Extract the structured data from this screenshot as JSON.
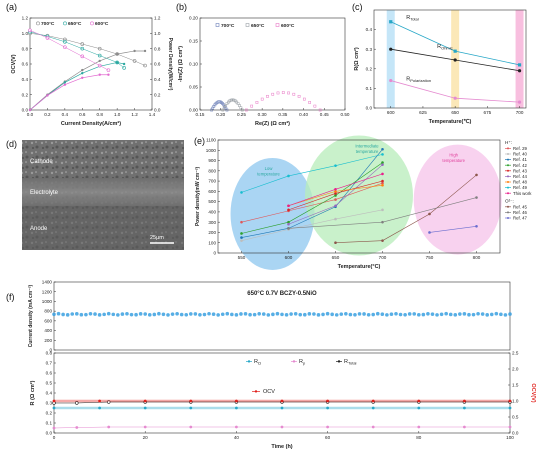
{
  "chart_data": [
    {
      "id": "a",
      "type": "line",
      "panel_label": "(a)",
      "xlabel": "Current Density(A/cm²)",
      "ylabel_left": "OCV(V)",
      "ylabel_right": "Power Density(W/cm²)",
      "xlim": [
        0.0,
        1.4
      ],
      "ylim_left": [
        0.0,
        1.2
      ],
      "ylim_right": [
        0.0,
        1.2
      ],
      "xticks": [
        "0.0",
        "0.2",
        "0.4",
        "0.6",
        "0.8",
        "1.0",
        "1.2",
        "1.4"
      ],
      "yticks_left": [
        "0.0",
        "0.2",
        "0.4",
        "0.6",
        "0.8",
        "1.0",
        "1.2"
      ],
      "yticks_right": [
        "0.0",
        "0.2",
        "0.4",
        "0.6",
        "0.8",
        "1.0",
        "1.2"
      ],
      "legend": [
        "700°C",
        "650°C",
        "600°C"
      ],
      "legend_position": "top-left",
      "colors": [
        "#8a8a8a",
        "#2aa8a0",
        "#e26ad0"
      ],
      "series": [
        {
          "name": "700°C",
          "voltage": {
            "x": [
              0.0,
              0.2,
              0.4,
              0.6,
              0.8,
              1.0,
              1.2,
              1.32
            ],
            "y": [
              1.0,
              0.97,
              0.92,
              0.86,
              0.8,
              0.73,
              0.64,
              0.58
            ]
          },
          "power": {
            "x": [
              0.0,
              0.2,
              0.4,
              0.6,
              0.8,
              1.0,
              1.2,
              1.32
            ],
            "y": [
              0.0,
              0.2,
              0.37,
              0.52,
              0.64,
              0.73,
              0.77,
              0.77
            ]
          }
        },
        {
          "name": "650°C",
          "voltage": {
            "x": [
              0.0,
              0.2,
              0.4,
              0.6,
              0.8,
              1.0,
              1.08
            ],
            "y": [
              1.02,
              0.96,
              0.89,
              0.8,
              0.71,
              0.62,
              0.55
            ]
          },
          "power": {
            "x": [
              0.0,
              0.2,
              0.4,
              0.6,
              0.8,
              1.0,
              1.08
            ],
            "y": [
              0.0,
              0.19,
              0.36,
              0.48,
              0.57,
              0.62,
              0.6
            ]
          }
        },
        {
          "name": "600°C",
          "voltage": {
            "x": [
              0.0,
              0.2,
              0.4,
              0.6,
              0.8,
              0.9
            ],
            "y": [
              1.04,
              0.94,
              0.82,
              0.7,
              0.58,
              0.52
            ]
          },
          "power": {
            "x": [
              0.0,
              0.2,
              0.4,
              0.6,
              0.8,
              0.9
            ],
            "y": [
              0.0,
              0.19,
              0.33,
              0.42,
              0.46,
              0.46
            ]
          }
        }
      ]
    },
    {
      "id": "b",
      "type": "scatter",
      "panel_label": "(b)",
      "xlabel": "Re(Z) (Ω cm²)",
      "ylabel": "-Im(Z) (Ω cm²)",
      "xlim": [
        0.15,
        0.5
      ],
      "ylim": [
        0.0,
        0.2
      ],
      "xticks": [
        "0.15",
        "0.20",
        "0.25",
        "0.30",
        "0.35",
        "0.40",
        "0.45",
        "0.50"
      ],
      "yticks": [
        "0.00",
        "0.05",
        "0.10",
        "0.15",
        "0.20"
      ],
      "legend": [
        "700°C",
        "650°C",
        "600°C"
      ],
      "legend_position": "top",
      "colors": [
        "#6b7fb8",
        "#9aa0a6",
        "#e879c6"
      ],
      "series": [
        {
          "name": "700°C",
          "x_start": 0.178,
          "x_end": 0.215,
          "peak": 0.018
        },
        {
          "name": "650°C",
          "x_start": 0.205,
          "x_end": 0.252,
          "peak": 0.022
        },
        {
          "name": "600°C",
          "x_start": 0.262,
          "x_end": 0.44,
          "peak": 0.038
        }
      ]
    },
    {
      "id": "c",
      "type": "line",
      "panel_label": "(c)",
      "xlabel": "Temperature(℃)",
      "ylabel": "R(Ω cm²)",
      "xlim": [
        587,
        705
      ],
      "ylim": [
        0.0,
        0.5
      ],
      "xticks": [
        "600",
        "625",
        "650",
        "675",
        "700"
      ],
      "yticks": [
        "0.0",
        "0.1",
        "0.2",
        "0.3",
        "0.4"
      ],
      "bands": [
        {
          "x": 600,
          "color": "#bfe3f7"
        },
        {
          "x": 650,
          "color": "#fbe6b0"
        },
        {
          "x": 700,
          "color": "#f7b8dc"
        }
      ],
      "series": [
        {
          "name": "RTotal",
          "label_main": "R",
          "label_sub": "Total",
          "color": "#27a7c7",
          "x": [
            600,
            650,
            700
          ],
          "y": [
            0.44,
            0.29,
            0.22
          ]
        },
        {
          "name": "ROhmic",
          "label_main": "R",
          "label_sub": "Ohmic",
          "color": "#222222",
          "x": [
            600,
            650,
            700
          ],
          "y": [
            0.3,
            0.245,
            0.19
          ]
        },
        {
          "name": "RPolarization",
          "label_main": "R",
          "label_sub": "Polarization",
          "color": "#e58bd0",
          "x": [
            600,
            650,
            700
          ],
          "y": [
            0.14,
            0.05,
            0.03
          ]
        }
      ]
    },
    {
      "id": "e",
      "type": "line",
      "panel_label": "(e)",
      "xlabel": "Temperature(°C)",
      "ylabel": "Power density(mW cm⁻²)",
      "xlim": [
        525,
        825
      ],
      "ylim": [
        0,
        1100
      ],
      "xticks": [
        "550",
        "600",
        "650",
        "700",
        "750",
        "800"
      ],
      "yticks": [
        "0",
        "100",
        "200",
        "300",
        "400",
        "500",
        "600",
        "700",
        "800",
        "900",
        "1000",
        "1100"
      ],
      "regions": [
        {
          "label_lines": [
            "Low",
            "temperature"
          ],
          "color": "#8ec7ef"
        },
        {
          "label_lines": [
            "Intermediate",
            "temperature"
          ],
          "color": "#b7ecb9"
        },
        {
          "label_lines": [
            "High",
            "temperature"
          ],
          "color": "#f6c3ea"
        }
      ],
      "legend_groups": [
        {
          "header": "H⁺:",
          "entries": [
            {
              "name": "Ref. 29",
              "color": "#e15759"
            },
            {
              "name": "Ref. 40",
              "color": "#bdbdbd"
            },
            {
              "name": "Ref. 41",
              "color": "#1f77b4"
            },
            {
              "name": "Ref. 42",
              "color": "#2ca02c"
            },
            {
              "name": "Ref. 43",
              "color": "#d62728"
            },
            {
              "name": "Ref. 44",
              "color": "#9467bd"
            },
            {
              "name": "Ref. 48",
              "color": "#ff7f0e"
            },
            {
              "name": "Ref. 49",
              "color": "#17becf"
            },
            {
              "name": "This work",
              "color": "#e91e8c"
            }
          ]
        },
        {
          "header": "O²⁻:",
          "entries": [
            {
              "name": "Ref. 45",
              "color": "#8c564b"
            },
            {
              "name": "Ref. 46",
              "color": "#7f7f7f"
            },
            {
              "name": "Ref. 47",
              "color": "#6b6ecf"
            }
          ]
        }
      ],
      "series": [
        {
          "name": "Ref. 29",
          "x": [
            550,
            600,
            650,
            700
          ],
          "y": [
            300,
            410,
            520,
            680
          ]
        },
        {
          "name": "Ref. 40",
          "x": [
            550,
            600,
            650,
            700
          ],
          "y": [
            120,
            230,
            330,
            420
          ]
        },
        {
          "name": "Ref. 41",
          "x": [
            550,
            600,
            650,
            700
          ],
          "y": [
            150,
            240,
            450,
            1010
          ]
        },
        {
          "name": "Ref. 42",
          "x": [
            550,
            600,
            650,
            700
          ],
          "y": [
            190,
            300,
            560,
            880
          ]
        },
        {
          "name": "Ref. 43",
          "x": [
            600,
            650,
            700
          ],
          "y": [
            420,
            580,
            700
          ]
        },
        {
          "name": "Ref. 44",
          "x": [
            600,
            650,
            700
          ],
          "y": [
            280,
            460,
            860
          ]
        },
        {
          "name": "Ref. 48",
          "x": [
            600,
            650,
            700
          ],
          "y": [
            460,
            600,
            660
          ]
        },
        {
          "name": "Ref. 49",
          "x": [
            550,
            600,
            650,
            700
          ],
          "y": [
            590,
            750,
            850,
            960
          ]
        },
        {
          "name": "This work",
          "x": [
            600,
            650,
            700
          ],
          "y": [
            460,
            620,
            770
          ]
        },
        {
          "name": "Ref. 45",
          "x": [
            650,
            700,
            750,
            800
          ],
          "y": [
            100,
            120,
            380,
            760
          ]
        },
        {
          "name": "Ref. 46",
          "x": [
            600,
            700,
            800
          ],
          "y": [
            240,
            300,
            540
          ]
        },
        {
          "name": "Ref. 47",
          "x": [
            750,
            800
          ],
          "y": [
            200,
            260
          ]
        }
      ]
    },
    {
      "id": "f",
      "type": "line",
      "panel_label": "(f)",
      "title": "650°C 0.7V BCZY-0.5NiO",
      "xlabel": "Time (h)",
      "xlim": [
        0,
        100
      ],
      "xticks": [
        "0",
        "20",
        "40",
        "60",
        "80",
        "100"
      ],
      "top": {
        "ylabel": "Current density (mA cm⁻²)",
        "ylim": [
          0,
          1400
        ],
        "yticks": [
          "0",
          "200",
          "400",
          "600",
          "800",
          "1000",
          "1200",
          "1400"
        ],
        "series": [
          {
            "name": "Current density",
            "color": "#3aa0e0",
            "x": [
              0,
              100
            ],
            "y": [
              735,
              735
            ]
          }
        ]
      },
      "bottom": {
        "ylabel_left": "R (Ω cm²)",
        "ylabel_right": "OCV(V)",
        "ylim_left": [
          0.0,
          0.8
        ],
        "ylim_right": [
          0.0,
          2.5
        ],
        "yticks_left": [
          "0.0",
          "0.1",
          "0.2",
          "0.3",
          "0.4",
          "0.5",
          "0.6",
          "0.7",
          "0.8"
        ],
        "yticks_right": [
          "0.0",
          "0.5",
          "1.0",
          "1.5",
          "2.0",
          "2.5"
        ],
        "legend_top": [
          {
            "name": "RΩ",
            "label_main": "R",
            "label_sub": "Ω",
            "color": "#27a7c7"
          },
          {
            "name": "Rp",
            "label_main": "R",
            "label_sub": "p",
            "color": "#e58bd0"
          },
          {
            "name": "RTotal",
            "label_main": "R",
            "label_sub": "Total",
            "color": "#222222"
          }
        ],
        "legend_ocv": {
          "name": "OCV",
          "color": "#e0201c"
        },
        "series": [
          {
            "name": "RTotal",
            "axis": "left",
            "color": "#222222",
            "x": [
              0,
              5,
              12,
              20,
              30,
              40,
              50,
              60,
              70,
              80,
              90,
              100
            ],
            "y": [
              0.3,
              0.3,
              0.31,
              0.31,
              0.31,
              0.31,
              0.31,
              0.31,
              0.31,
              0.31,
              0.31,
              0.31
            ]
          },
          {
            "name": "RΩ",
            "axis": "left",
            "color": "#27a7c7",
            "x": [
              0,
              10,
              20,
              30,
              40,
              50,
              60,
              70,
              80,
              90,
              100
            ],
            "y": [
              0.25,
              0.25,
              0.25,
              0.25,
              0.25,
              0.25,
              0.25,
              0.25,
              0.25,
              0.25,
              0.25
            ]
          },
          {
            "name": "OCV",
            "axis": "right",
            "color": "#e0201c",
            "x": [
              0,
              10,
              20,
              30,
              40,
              50,
              60,
              70,
              80,
              90,
              100
            ],
            "y": [
              1.0,
              1.0,
              1.0,
              1.0,
              1.0,
              1.0,
              1.0,
              1.0,
              1.0,
              1.0,
              1.0
            ]
          },
          {
            "name": "Rp",
            "axis": "left",
            "color": "#e58bd0",
            "x": [
              0,
              5,
              12,
              20,
              30,
              40,
              50,
              60,
              70,
              80,
              90,
              100
            ],
            "y": [
              0.05,
              0.055,
              0.06,
              0.06,
              0.06,
              0.06,
              0.06,
              0.06,
              0.06,
              0.06,
              0.06,
              0.06
            ]
          }
        ]
      }
    }
  ],
  "panel_d": {
    "panel_label": "(d)",
    "labels": [
      "Cathode",
      "Electrolyte",
      "Anode"
    ],
    "scale_bar": "25μm"
  }
}
